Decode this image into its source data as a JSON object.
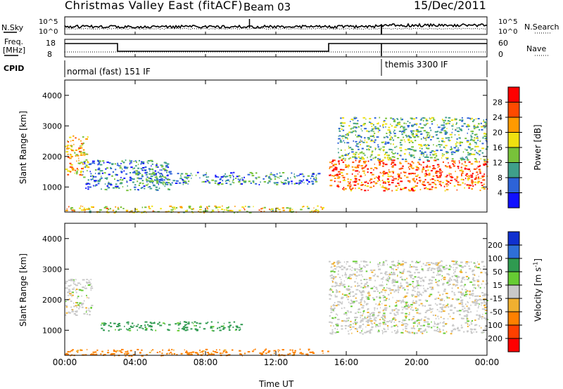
{
  "header": {
    "title": "Christmas Valley East (fitACF)",
    "beam": "Beam 03",
    "date": "15/Dec/2011"
  },
  "sky_panel": {
    "left_label": "N.Sky",
    "left_ticks": [
      "10^5",
      "10^0"
    ],
    "right_ticks": [
      "10^5",
      "10^0"
    ],
    "right_label": "N.Search"
  },
  "freq_panel": {
    "left_label_line1": "Freq.",
    "left_label_line2": "[MHz]",
    "left_ticks": [
      "18",
      "8"
    ],
    "right_ticks": [
      "60",
      "0"
    ],
    "right_label": "Nave"
  },
  "cpid": {
    "label": "CPID",
    "mode1": "normal (fast) 151 IF",
    "mode2": "themis 3300 IF"
  },
  "chart_data": [
    {
      "type": "heatmap",
      "quantity": "Power",
      "ylabel": "Slant Range [km]",
      "xlabel": "Time UT",
      "x_ticks": [
        "00:00",
        "04:00",
        "08:00",
        "12:00",
        "16:00",
        "20:00",
        "00:00"
      ],
      "xlim": [
        "00:00",
        "24:00"
      ],
      "y_ticks": [
        1000,
        2000,
        3000,
        4000
      ],
      "ylim": [
        180,
        4500
      ],
      "colorbar": {
        "label": "Power [dB]",
        "ticks": [
          "4",
          "8",
          "12",
          "16",
          "20",
          "24",
          "28"
        ],
        "range": [
          0,
          32
        ],
        "colors": [
          "#1010ff",
          "#2d63d8",
          "#3f9f8a",
          "#78c23a",
          "#f0e010",
          "#ff9a00",
          "#ff4a00",
          "#ff0000"
        ]
      },
      "echo_regions": [
        {
          "t_start": 0.0,
          "t_end": 1.3,
          "range_low": 1400,
          "range_high": 2700,
          "power_db": 20
        },
        {
          "t_start": 1.0,
          "t_end": 6.0,
          "range_low": 900,
          "range_high": 1900,
          "power_db": 8
        },
        {
          "t_start": 4.0,
          "t_end": 14.5,
          "range_low": 1100,
          "range_high": 1500,
          "power_db": 9
        },
        {
          "t_start": 0.0,
          "t_end": 15.0,
          "range_low": 180,
          "range_high": 400,
          "power_db": 18
        },
        {
          "t_start": 15.0,
          "t_end": 24.0,
          "range_low": 900,
          "range_high": 1900,
          "power_db": 26
        },
        {
          "t_start": 15.5,
          "t_end": 24.0,
          "range_low": 1900,
          "range_high": 3300,
          "power_db": 12
        }
      ]
    },
    {
      "type": "heatmap",
      "quantity": "Velocity",
      "ylabel": "Slant Range [km]",
      "xlabel": "Time UT",
      "x_ticks": [
        "00:00",
        "04:00",
        "08:00",
        "12:00",
        "16:00",
        "20:00",
        "00:00"
      ],
      "xlim": [
        "00:00",
        "24:00"
      ],
      "y_ticks": [
        1000,
        2000,
        3000,
        4000
      ],
      "ylim": [
        180,
        4500
      ],
      "colorbar": {
        "label": "Velocity [m s^-1]",
        "ticks": [
          "200",
          "100",
          "50",
          "15",
          "-15",
          "-50",
          "-100",
          "-200"
        ],
        "colors": [
          "#1030d0",
          "#2e6fd8",
          "#2f9a50",
          "#66cc33",
          "#c8c8c8",
          "#f0b030",
          "#ff8000",
          "#ff4000",
          "#ff0000"
        ]
      },
      "echo_regions": [
        {
          "t_start": 0.0,
          "t_end": 1.5,
          "range_low": 1500,
          "range_high": 2700,
          "velocity": 0
        },
        {
          "t_start": 2.0,
          "t_end": 10.0,
          "range_low": 1000,
          "range_high": 1300,
          "velocity": 50
        },
        {
          "t_start": 0.0,
          "t_end": 15.0,
          "range_low": 180,
          "range_high": 400,
          "velocity": -50
        },
        {
          "t_start": 15.0,
          "t_end": 24.0,
          "range_low": 900,
          "range_high": 1900,
          "velocity": 0
        },
        {
          "t_start": 15.0,
          "t_end": 24.0,
          "range_low": 1900,
          "range_high": 3300,
          "velocity": 0
        }
      ]
    }
  ]
}
